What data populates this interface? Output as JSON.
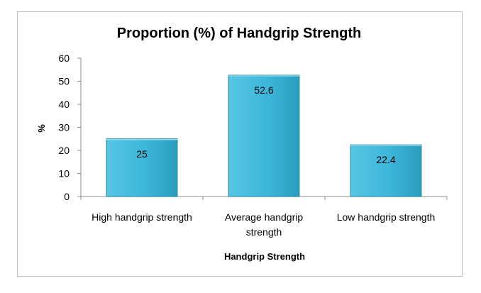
{
  "chart_data": {
    "type": "bar",
    "title": "Proportion (%) of Handgrip Strength",
    "xlabel": "Handgrip Strength",
    "ylabel": "%",
    "categories": [
      "High handgrip strength",
      "Average handgrip strength",
      "Low handgrip strength"
    ],
    "category_lines": [
      [
        "High handgrip strength"
      ],
      [
        "Average handgrip",
        "strength"
      ],
      [
        "Low handgrip strength"
      ]
    ],
    "values": [
      25,
      52.6,
      22.4
    ],
    "data_labels": [
      "25",
      "52.6",
      "22.4"
    ],
    "ylim": [
      0,
      60
    ],
    "yticks": [
      "0",
      "10",
      "20",
      "30",
      "40",
      "50",
      "60"
    ],
    "grid": false,
    "legend": "none",
    "bar_color": "#3db6d8",
    "bar_color_dark": "#2a9dbe"
  }
}
